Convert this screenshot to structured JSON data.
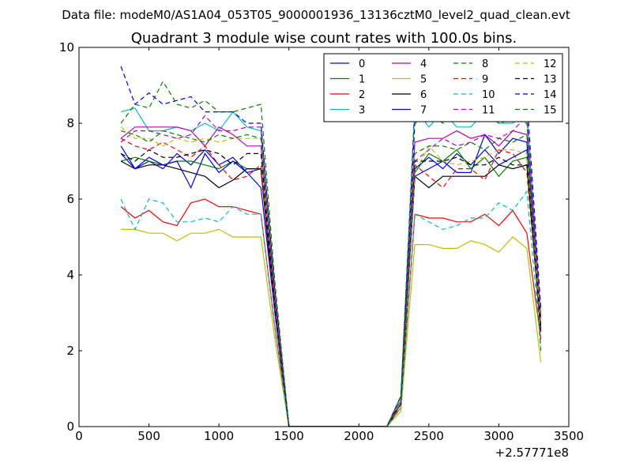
{
  "chart_data": {
    "type": "line",
    "suptitle": "Data file: modeM0/AS1A04_053T05_9000001936_13136cztM0_level2_quad_clean.evt",
    "title": "Quadrant 3 module wise count rates with 100.0s bins.",
    "xlabel": "",
    "ylabel": "",
    "x_offset_label": "+2.57771e8",
    "xlim": [
      0,
      3500
    ],
    "ylim": [
      0,
      10
    ],
    "xticks": [
      "0",
      "500",
      "1000",
      "1500",
      "2000",
      "2500",
      "3000",
      "3500"
    ],
    "yticks": [
      "0",
      "2",
      "4",
      "6",
      "8",
      "10"
    ],
    "grid": false,
    "legend_position": "top-right",
    "x": [
      300,
      400,
      500,
      600,
      700,
      800,
      900,
      1000,
      1100,
      1200,
      1300,
      1400,
      1500,
      1600,
      1700,
      1800,
      1900,
      2000,
      2100,
      2200,
      2300,
      2400,
      2500,
      2600,
      2700,
      2800,
      2900,
      3000,
      3100,
      3200,
      3300
    ],
    "series": [
      {
        "name": "0",
        "color": "#0000ff",
        "style": "solid",
        "values": [
          7.2,
          6.8,
          7.0,
          6.8,
          7.2,
          6.9,
          7.3,
          6.9,
          7.1,
          6.7,
          6.8,
          3.1,
          0,
          0,
          0,
          0,
          0,
          0,
          0,
          0,
          0.6,
          6.8,
          7.1,
          6.8,
          7.2,
          6.9,
          7.3,
          6.9,
          7.1,
          7.3,
          2.5
        ]
      },
      {
        "name": "1",
        "color": "#008000",
        "style": "solid",
        "values": [
          7.0,
          7.1,
          7.0,
          6.9,
          7.0,
          7.0,
          6.9,
          6.8,
          7.0,
          6.8,
          6.8,
          3.0,
          0,
          0,
          0,
          0,
          0,
          0,
          0,
          0,
          0.6,
          6.7,
          7.2,
          7.0,
          7.3,
          6.8,
          7.1,
          6.6,
          7.0,
          7.1,
          2.6
        ]
      },
      {
        "name": "2",
        "color": "#ff0000",
        "style": "solid",
        "values": [
          5.8,
          5.5,
          5.7,
          5.4,
          5.3,
          5.9,
          6.0,
          5.8,
          5.8,
          5.7,
          5.6,
          2.6,
          0,
          0,
          0,
          0,
          0,
          0,
          0,
          0,
          0.5,
          5.6,
          5.5,
          5.5,
          5.4,
          5.4,
          5.6,
          5.3,
          5.7,
          5.1,
          2.3
        ]
      },
      {
        "name": "3",
        "color": "#00bfbf",
        "style": "solid",
        "values": [
          8.3,
          8.4,
          7.8,
          7.8,
          7.9,
          7.8,
          8.0,
          7.8,
          8.3,
          7.9,
          7.8,
          3.5,
          0,
          0,
          0,
          0,
          0,
          0,
          0,
          0,
          0.7,
          8.4,
          7.9,
          8.3,
          7.9,
          7.9,
          8.3,
          8.0,
          8.0,
          8.3,
          2.9
        ]
      },
      {
        "name": "4",
        "color": "#bf00bf",
        "style": "solid",
        "values": [
          7.6,
          7.9,
          7.9,
          7.9,
          7.9,
          7.8,
          7.4,
          7.9,
          7.7,
          7.4,
          7.4,
          3.3,
          0,
          0,
          0,
          0,
          0,
          0,
          0,
          0,
          0.7,
          7.5,
          7.6,
          7.6,
          7.8,
          7.6,
          7.7,
          7.4,
          7.8,
          7.7,
          2.8
        ]
      },
      {
        "name": "5",
        "color": "#bfbf00",
        "style": "solid",
        "values": [
          5.2,
          5.2,
          5.1,
          5.1,
          4.9,
          5.1,
          5.1,
          5.2,
          5.0,
          5.0,
          5.0,
          2.3,
          0,
          0,
          0,
          0,
          0,
          0,
          0,
          0,
          0.4,
          4.8,
          4.8,
          4.7,
          4.7,
          4.9,
          4.8,
          4.6,
          5.0,
          4.7,
          1.7
        ]
      },
      {
        "name": "6",
        "color": "#000000",
        "style": "solid",
        "values": [
          7.0,
          6.8,
          6.9,
          6.9,
          6.8,
          6.7,
          6.6,
          6.3,
          6.5,
          6.8,
          6.8,
          3.0,
          0,
          0,
          0,
          0,
          0,
          0,
          0,
          0,
          0.6,
          6.6,
          6.3,
          6.6,
          6.6,
          6.6,
          6.6,
          6.9,
          6.8,
          6.9,
          2.5
        ]
      },
      {
        "name": "7",
        "color": "#0000ff",
        "style": "solid",
        "values": [
          7.4,
          6.8,
          7.1,
          6.9,
          7.0,
          6.3,
          7.2,
          6.7,
          7.0,
          6.7,
          6.3,
          3.0,
          0,
          0,
          0,
          0,
          0,
          0,
          0,
          0,
          0.6,
          6.6,
          6.8,
          7.0,
          6.7,
          6.7,
          7.7,
          7.2,
          7.6,
          7.5,
          2.6
        ]
      },
      {
        "name": "8",
        "color": "#008000",
        "style": "dashed",
        "values": [
          8.0,
          8.5,
          8.4,
          9.1,
          8.5,
          8.4,
          8.6,
          8.3,
          8.3,
          8.4,
          8.5,
          3.8,
          0,
          0,
          0,
          0,
          0,
          0,
          0,
          0,
          0.8,
          8.5,
          8.3,
          8.0,
          8.3,
          8.3,
          8.3,
          8.0,
          8.1,
          8.0,
          3.0
        ]
      },
      {
        "name": "9",
        "color": "#ff0000",
        "style": "dashed",
        "values": [
          7.6,
          7.4,
          7.3,
          7.5,
          7.3,
          7.1,
          7.4,
          6.9,
          6.5,
          6.6,
          6.9,
          3.1,
          0,
          0,
          0,
          0,
          0,
          0,
          0,
          0,
          0.6,
          6.9,
          6.6,
          6.3,
          6.8,
          6.8,
          6.5,
          7.3,
          7.2,
          6.7,
          2.5
        ]
      },
      {
        "name": "10",
        "color": "#00bfbf",
        "style": "dashed",
        "values": [
          6.0,
          5.2,
          6.0,
          5.9,
          5.4,
          5.4,
          5.5,
          5.4,
          5.8,
          5.6,
          5.6,
          2.6,
          0,
          0,
          0,
          0,
          0,
          0,
          0,
          0,
          0.5,
          5.6,
          5.4,
          5.2,
          5.3,
          5.5,
          5.5,
          5.9,
          5.7,
          6.2,
          2.1
        ]
      },
      {
        "name": "11",
        "color": "#bf00bf",
        "style": "dashed",
        "values": [
          7.5,
          7.8,
          7.8,
          7.7,
          7.6,
          7.7,
          8.2,
          7.8,
          7.8,
          7.9,
          7.9,
          3.5,
          0,
          0,
          0,
          0,
          0,
          0,
          0,
          0,
          0.7,
          7.0,
          7.3,
          7.6,
          7.4,
          7.5,
          7.7,
          7.6,
          7.8,
          8.2,
          2.9
        ]
      },
      {
        "name": "12",
        "color": "#bfbf00",
        "style": "dashed",
        "values": [
          7.9,
          7.6,
          7.6,
          7.4,
          7.6,
          7.5,
          7.6,
          7.5,
          7.6,
          7.6,
          7.6,
          3.4,
          0,
          0,
          0,
          0,
          0,
          0,
          0,
          0,
          0.7,
          6.7,
          7.4,
          7.0,
          6.9,
          7.0,
          7.1,
          7.3,
          7.3,
          7.2,
          2.7
        ]
      },
      {
        "name": "13",
        "color": "#000000",
        "style": "dashed",
        "values": [
          7.2,
          7.0,
          7.3,
          7.1,
          7.1,
          7.2,
          7.3,
          7.2,
          6.9,
          7.2,
          7.2,
          3.2,
          0,
          0,
          0,
          0,
          0,
          0,
          0,
          0,
          0.6,
          7.0,
          7.0,
          7.0,
          7.1,
          6.9,
          6.9,
          7.1,
          6.9,
          6.9,
          2.6
        ]
      },
      {
        "name": "14",
        "color": "#0000ff",
        "style": "dashed",
        "values": [
          9.5,
          8.5,
          8.8,
          8.5,
          8.6,
          8.7,
          8.3,
          8.3,
          8.3,
          8.0,
          8.0,
          3.6,
          0,
          0,
          0,
          0,
          0,
          0,
          0,
          0,
          0.8,
          8.0,
          8.2,
          8.3,
          8.5,
          8.3,
          8.3,
          8.4,
          8.2,
          8.7,
          3.1
        ]
      },
      {
        "name": "15",
        "color": "#008000",
        "style": "dashed",
        "values": [
          7.8,
          7.7,
          7.5,
          7.8,
          7.7,
          7.6,
          7.5,
          7.7,
          7.6,
          7.7,
          7.6,
          3.4,
          0,
          0,
          0,
          0,
          0,
          0,
          0,
          0,
          0.7,
          7.2,
          7.4,
          7.4,
          7.3,
          7.5,
          7.3,
          7.6,
          7.5,
          7.7,
          2.0
        ]
      }
    ]
  }
}
